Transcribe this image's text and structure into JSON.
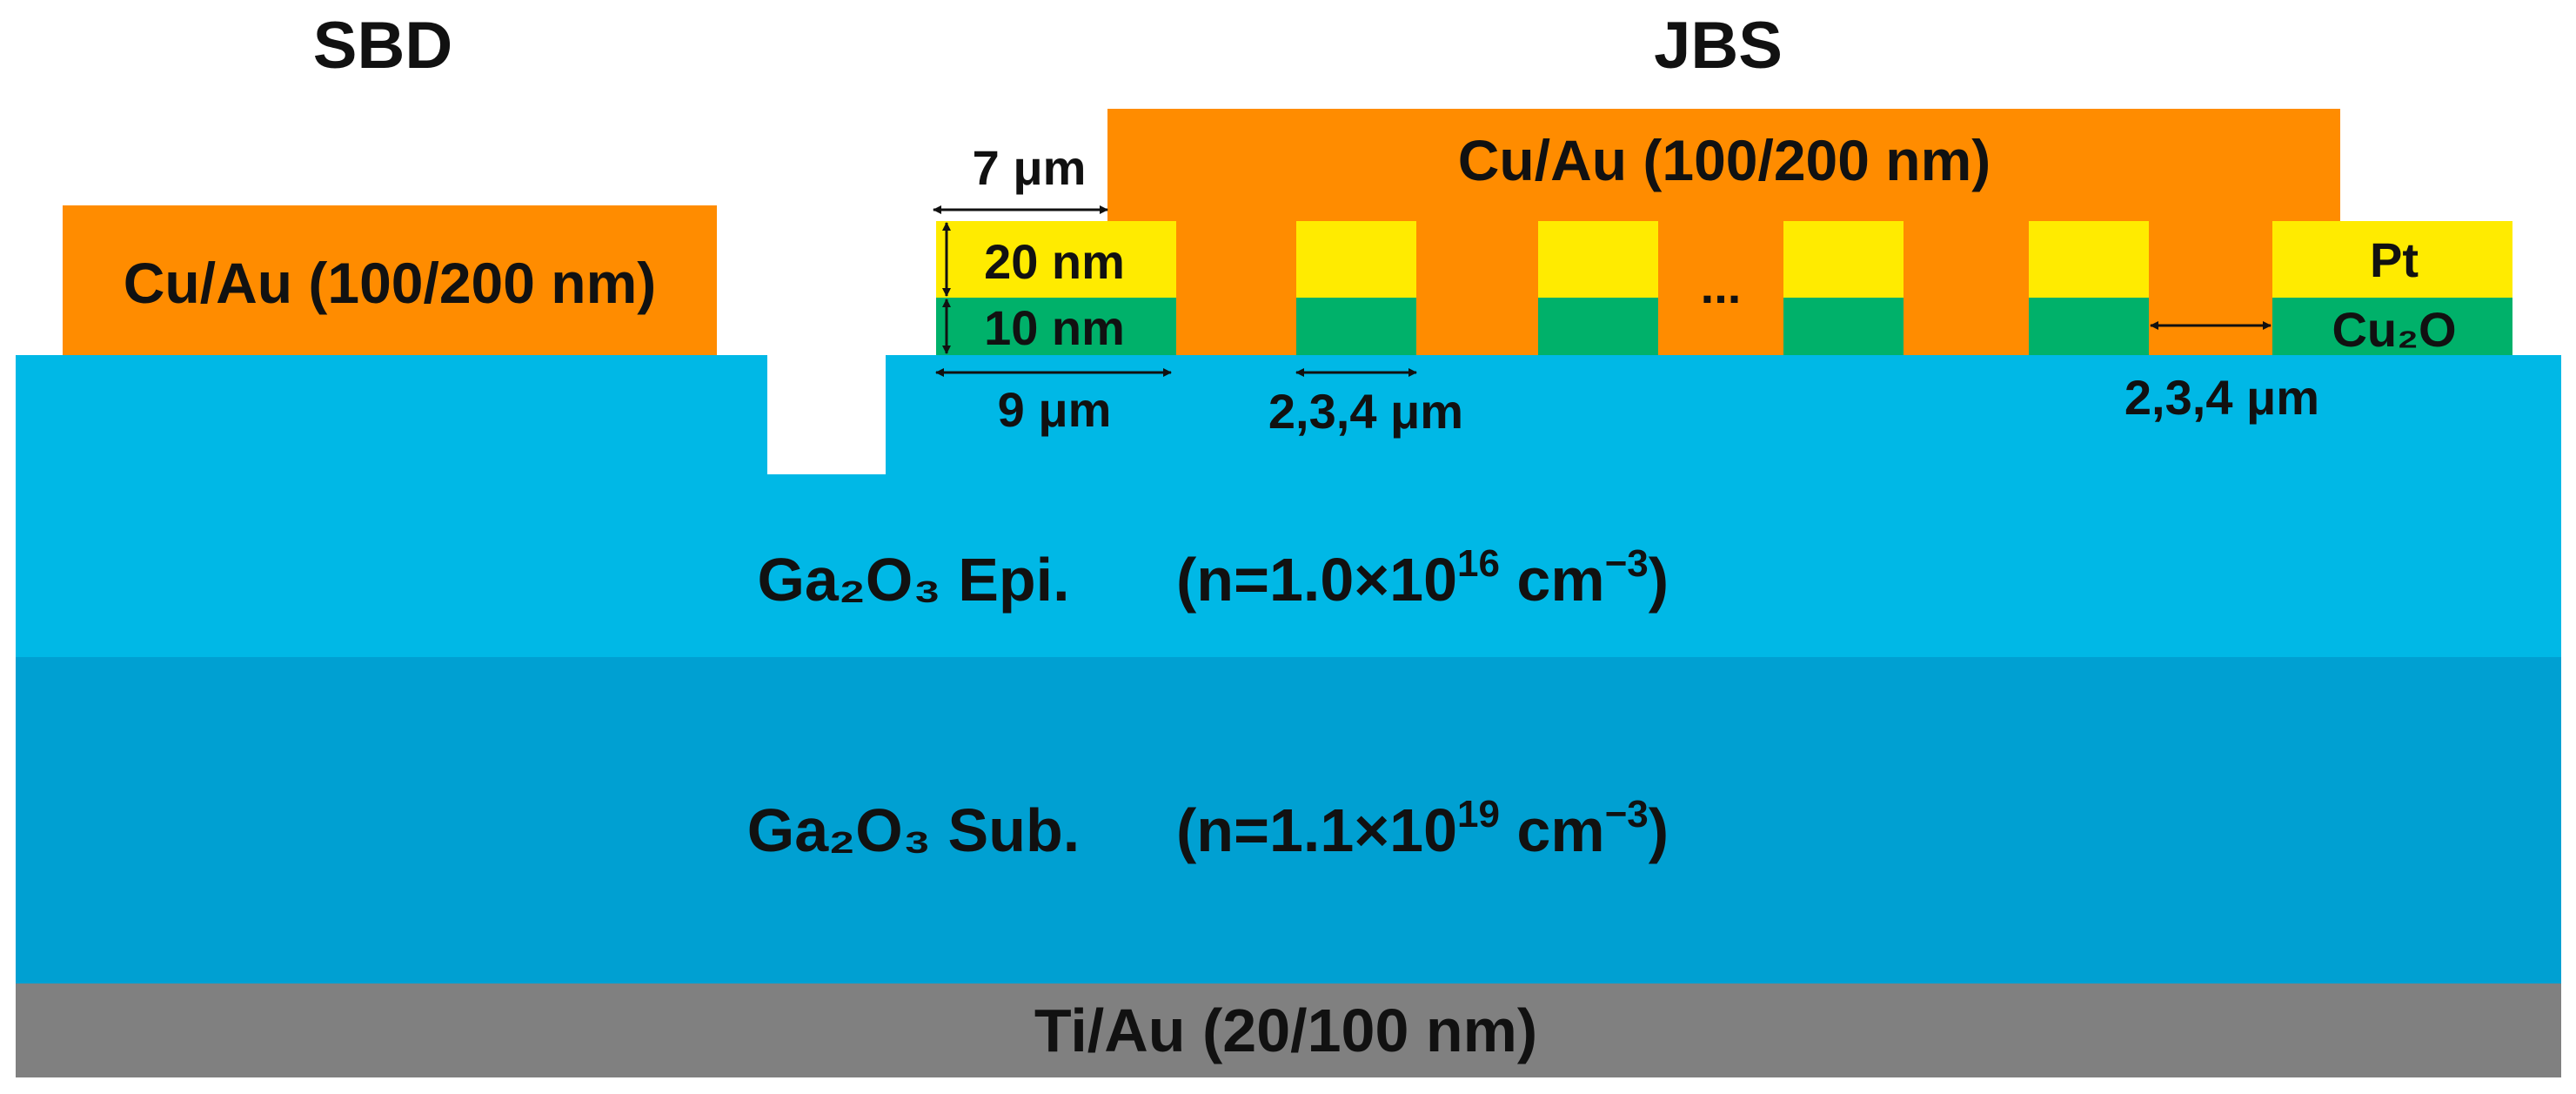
{
  "labels": {
    "sbd_title": "SBD",
    "jbs_title": "JBS",
    "sbd_contact": "Cu/Au (100/200 nm)",
    "jbs_contact": "Cu/Au (100/200 nm)",
    "pt_thickness": "20 nm",
    "cu2o_thickness": "10 nm",
    "overlap_dim": "7 μm",
    "first_pillar_width": "9 μm",
    "pillar_width": "2,3,4 μm",
    "spacing": "2,3,4 μm",
    "ellipsis": "...",
    "pt_label": "Pt",
    "cu2o_label": "Cu₂O",
    "epi_material": "Ga₂O₃ Epi.",
    "epi_n_prefix": "(n=1.0×10",
    "epi_n_exp": "16",
    "epi_n_unit": " cm",
    "epi_n_unit_exp": "−3",
    "epi_n_close": ")",
    "sub_material": "Ga₂O₃ Sub.",
    "sub_n_prefix": "(n=1.1×10",
    "sub_n_exp": "19",
    "sub_n_unit": " cm",
    "sub_n_unit_exp": "−3",
    "sub_n_close": ")",
    "backside_contact": "Ti/Au (20/100 nm)"
  },
  "colors": {
    "cu_au": "#FF8C00",
    "pt": "#FFEB00",
    "cu2o": "#00B16A",
    "epi": "#00B8E6",
    "substrate": "#00A0D2",
    "ti_au": "#808080"
  }
}
